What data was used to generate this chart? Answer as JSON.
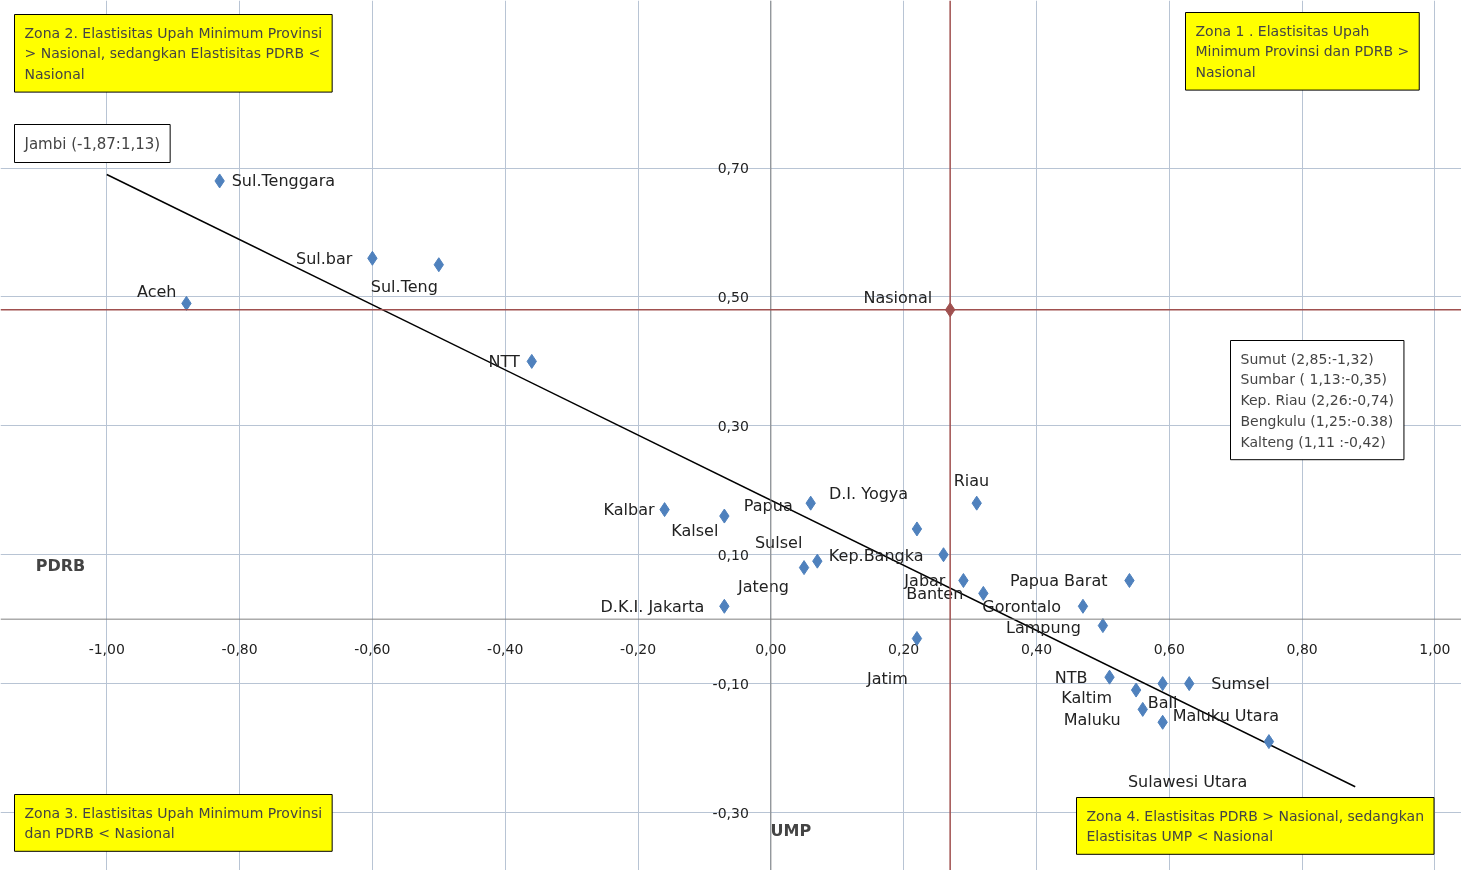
{
  "chart_data": {
    "type": "scatter",
    "xlabel": "UMP",
    "ylabel": "PDRB",
    "xlim": [
      -1.16,
      1.04
    ],
    "ylim": [
      -0.39,
      0.96
    ],
    "xticks": [
      {
        "value": -1.0,
        "label": "-1,00"
      },
      {
        "value": -0.8,
        "label": "-0,80"
      },
      {
        "value": -0.6,
        "label": "-0,60"
      },
      {
        "value": -0.4,
        "label": "-0,40"
      },
      {
        "value": -0.2,
        "label": "-0,20"
      },
      {
        "value": 0.0,
        "label": "0,00"
      },
      {
        "value": 0.2,
        "label": "0,20"
      },
      {
        "value": 0.4,
        "label": "0,40"
      },
      {
        "value": 0.6,
        "label": "0,60"
      },
      {
        "value": 0.8,
        "label": "0,80"
      },
      {
        "value": 1.0,
        "label": "1,00"
      }
    ],
    "yticks": [
      {
        "value": -0.3,
        "label": "-0,30"
      },
      {
        "value": -0.1,
        "label": "-0,10"
      },
      {
        "value": 0.1,
        "label": "0,10"
      },
      {
        "value": 0.3,
        "label": "0,30"
      },
      {
        "value": 0.5,
        "label": "0,50"
      },
      {
        "value": 0.7,
        "label": "0,70"
      }
    ],
    "grid": true,
    "marker": "diamond",
    "series": [
      {
        "type": "line",
        "marker": "none",
        "color": "#000000",
        "x": [
          -1.0,
          0.88
        ],
        "values": [
          0.69,
          -0.26
        ]
      },
      {
        "color": "#4f81bd",
        "x": [
          -0.83,
          -0.6,
          -0.5,
          -0.88,
          -0.36,
          -0.16,
          -0.07,
          0.06,
          0.22,
          0.31,
          0.26,
          0.07,
          0.05,
          0.29,
          0.32,
          0.54,
          0.47,
          0.5,
          -0.07,
          0.22,
          0.51,
          0.59,
          0.63,
          0.55,
          0.56,
          0.59,
          0.75
        ],
        "values": [
          0.68,
          0.56,
          0.55,
          0.49,
          0.4,
          0.17,
          0.16,
          0.18,
          0.14,
          0.18,
          0.1,
          0.09,
          0.08,
          0.06,
          0.04,
          0.06,
          0.02,
          -0.01,
          0.02,
          -0.03,
          -0.09,
          -0.1,
          -0.1,
          -0.11,
          -0.14,
          -0.16,
          -0.19
        ],
        "value_labels": [
          "Sul.Tenggara",
          "Sul.bar",
          "Sul.Teng",
          "Aceh",
          "NTT",
          "Kalbar",
          "Kalsel",
          "Papua",
          "D.I. Yogya",
          "Riau",
          "Kep.Bangka",
          "Sulsel",
          "Jateng",
          "Jabar",
          "Banten",
          "Papua Barat",
          "Gorontalo",
          "Lampung",
          "D.K.I. Jakarta",
          "Jatim",
          "NTB",
          "Bali",
          "Sumsel",
          "Kaltim",
          "Maluku",
          "Maluku Utara",
          "Sulawesi Utara"
        ]
      },
      {
        "color": "#a0504f",
        "x": [
          0.27
        ],
        "values": [
          0.48
        ],
        "value_labels": [
          "Nasional"
        ]
      }
    ],
    "ref_lines": [
      {
        "axis": "x",
        "value": 0.27,
        "color": "#a0504f"
      },
      {
        "axis": "y",
        "value": 0.48,
        "color": "#a0504f"
      }
    ],
    "annotations": [
      "Zona 2. Elastisitas Upah Minimum Provinsi > Nasional, sedangkan Elastisitas PDRB < Nasional",
      "Zona 1 . Elastisitas Upah Minimum Provinsi dan PDRB > Nasional",
      "Zona 3. Elastisitas Upah Minimum Provinsi  dan PDRB < Nasional",
      "Zona 4. Elastisitas PDRB > Nasional, sedangkan Elastisitas UMP < Nasional",
      "Jambi (-1,87:1,13)",
      "Sumut (2,85:-1,32)",
      "Sumbar ( 1,13:-0,35)",
      "Kep. Riau (2,26:-0,74)",
      "Bengkulu (1,25:-0.38)",
      "Kalteng (1,11 :-0,42)"
    ]
  }
}
